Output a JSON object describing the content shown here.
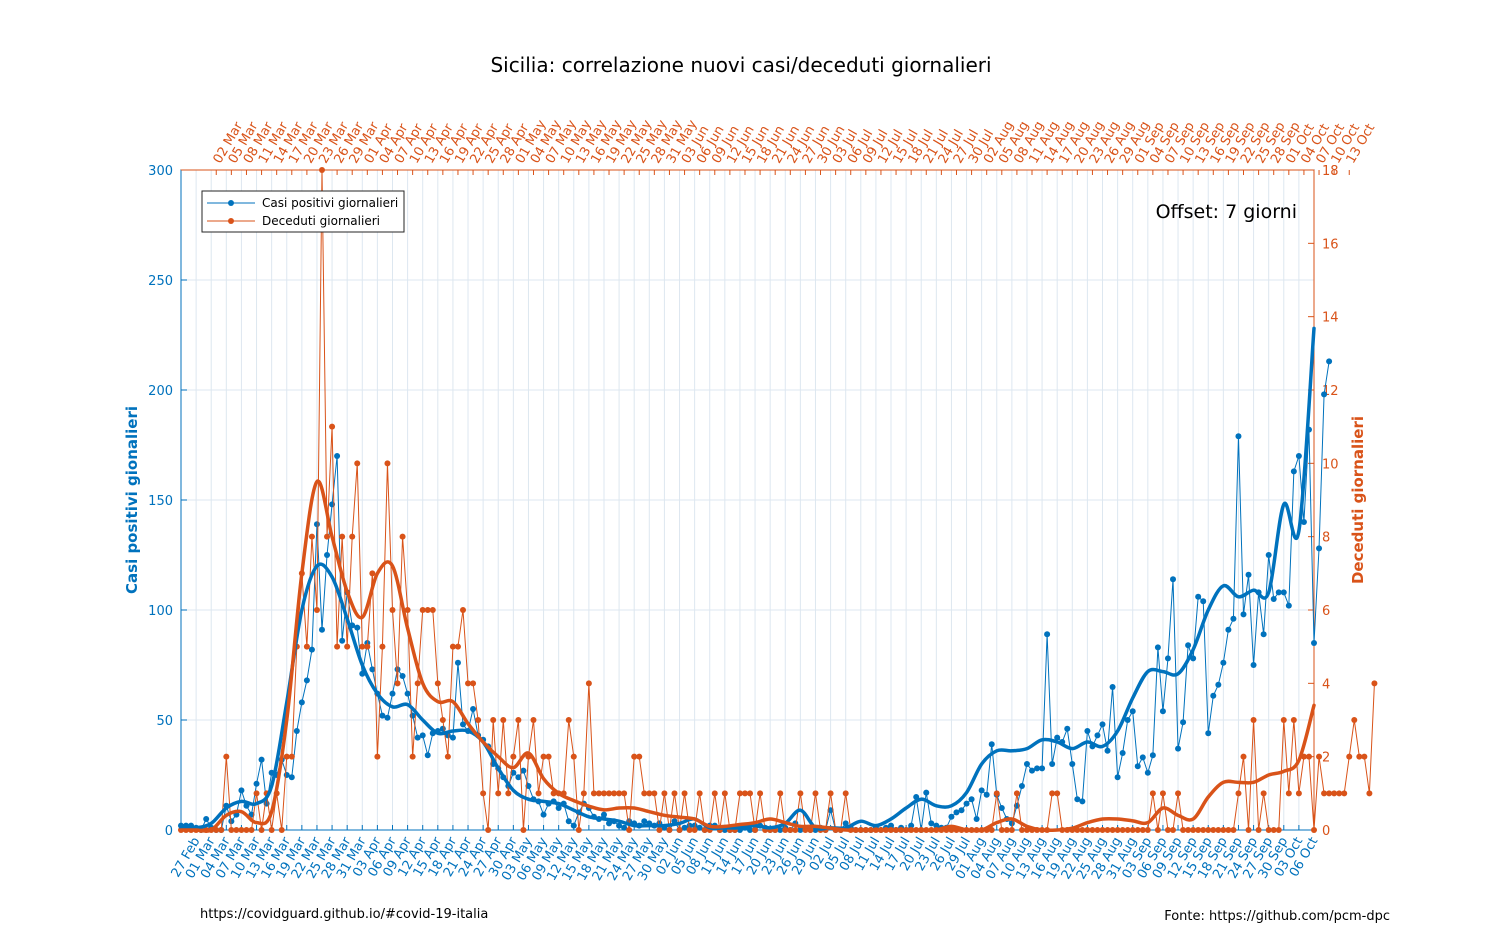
{
  "chart_data": {
    "type": "line",
    "title": "Sicilia: correlazione nuovi casi/deceduti giornalieri",
    "annotation": "Offset: 7 giorni",
    "source_left": "https://covidguard.github.io/#covid-19-italia",
    "source_right": "Fonte: https://github.com/pcm-dpc",
    "x_axis_bottom": {
      "start_date": "2020-02-24",
      "end_date": "2020-10-06",
      "tick_start": "2020-02-27",
      "tick_step_days": 3,
      "tick_labels": [
        "27 Feb",
        "01 Mar",
        "04 Mar",
        "07 Mar",
        "10 Mar",
        "13 Mar",
        "16 Mar",
        "19 Mar",
        "22 Mar",
        "25 Mar",
        "28 Mar",
        "31 Mar",
        "03 Apr",
        "06 Apr",
        "09 Apr",
        "12 Apr",
        "15 Apr",
        "18 Apr",
        "21 Apr",
        "24 Apr",
        "27 Apr",
        "30 Apr",
        "03 May",
        "06 May",
        "09 May",
        "12 May",
        "15 May",
        "18 May",
        "21 May",
        "24 May",
        "27 May",
        "30 May",
        "02 Jun",
        "05 Jun",
        "08 Jun",
        "11 Jun",
        "14 Jun",
        "17 Jun",
        "20 Jun",
        "23 Jun",
        "26 Jun",
        "29 Jun",
        "02 Jul",
        "05 Jul",
        "08 Jul",
        "11 Jul",
        "14 Jul",
        "17 Jul",
        "20 Jul",
        "23 Jul",
        "26 Jul",
        "29 Jul",
        "01 Aug",
        "04 Aug",
        "07 Aug",
        "10 Aug",
        "13 Aug",
        "16 Aug",
        "19 Aug",
        "22 Aug",
        "25 Aug",
        "28 Aug",
        "31 Aug",
        "03 Sep",
        "06 Sep",
        "09 Sep",
        "12 Sep",
        "15 Sep",
        "18 Sep",
        "21 Sep",
        "24 Sep",
        "27 Sep",
        "30 Sep",
        "03 Oct",
        "06 Oct"
      ]
    },
    "x_axis_top": {
      "start_date": "2020-03-02",
      "end_date": "2020-10-13",
      "tick_labels": [
        "02 Mar",
        "05 Mar",
        "08 Mar",
        "11 Mar",
        "14 Mar",
        "17 Mar",
        "20 Mar",
        "23 Mar",
        "26 Mar",
        "29 Mar",
        "01 Apr",
        "04 Apr",
        "07 Apr",
        "10 Apr",
        "13 Apr",
        "16 Apr",
        "19 Apr",
        "22 Apr",
        "25 Apr",
        "28 Apr",
        "01 May",
        "04 May",
        "07 May",
        "10 May",
        "13 May",
        "16 May",
        "19 May",
        "22 May",
        "25 May",
        "28 May",
        "31 May",
        "03 Jun",
        "06 Jun",
        "09 Jun",
        "12 Jun",
        "15 Jun",
        "18 Jun",
        "21 Jun",
        "24 Jun",
        "27 Jun",
        "30 Jun",
        "03 Jul",
        "06 Jul",
        "09 Jul",
        "12 Jul",
        "15 Jul",
        "18 Jul",
        "21 Jul",
        "24 Jul",
        "27 Jul",
        "30 Jul",
        "02 Aug",
        "05 Aug",
        "08 Aug",
        "11 Aug",
        "14 Aug",
        "17 Aug",
        "20 Aug",
        "23 Aug",
        "26 Aug",
        "29 Aug",
        "01 Sep",
        "04 Sep",
        "07 Sep",
        "10 Sep",
        "13 Sep",
        "16 Sep",
        "19 Sep",
        "22 Sep",
        "25 Sep",
        "28 Sep",
        "01 Oct",
        "04 Oct",
        "07 Oct",
        "10 Oct",
        "13 Oct"
      ]
    },
    "y_left": {
      "label": "Casi positivi gionalieri",
      "ylim": [
        0,
        300
      ],
      "ticks": [
        0,
        50,
        100,
        150,
        200,
        250,
        300
      ],
      "color": "#0072BD"
    },
    "y_right": {
      "label": "Deceduti giornalieri",
      "ylim": [
        0,
        18
      ],
      "ticks": [
        0,
        2,
        4,
        6,
        8,
        10,
        12,
        14,
        16,
        18
      ],
      "color": "#D95319"
    },
    "grid": true,
    "legend_position": "top-left",
    "series": [
      {
        "name": "Casi positivi giornalieri",
        "axis": "left",
        "color": "#0072BD",
        "x_start": "2020-02-24",
        "values": [
          2,
          2,
          2,
          1,
          0,
          5,
          1,
          0,
          0,
          11,
          4,
          7,
          18,
          11,
          7,
          21,
          32,
          12,
          26,
          25,
          32,
          25,
          24,
          45,
          58,
          68,
          82,
          139,
          91,
          125,
          148,
          170,
          86,
          108,
          93,
          92,
          71,
          85,
          73,
          62,
          52,
          51,
          62,
          73,
          70,
          62,
          52,
          42,
          43,
          34,
          44,
          45,
          46,
          43,
          42,
          76,
          48,
          45,
          55,
          43,
          41,
          38,
          30,
          28,
          24,
          20,
          26,
          24,
          27,
          20,
          14,
          13,
          7,
          12,
          13,
          10,
          12,
          4,
          2,
          8,
          12,
          10,
          6,
          5,
          7,
          3,
          4,
          2,
          1,
          4,
          3,
          2,
          4,
          3,
          2,
          3,
          1,
          0,
          4,
          0,
          1,
          2,
          2,
          1,
          0,
          2,
          2,
          0,
          0,
          0,
          0,
          0,
          1,
          0,
          0,
          2,
          1,
          0,
          0,
          0,
          1,
          0,
          3,
          0,
          1,
          0,
          0,
          1,
          0,
          9,
          0,
          0,
          3,
          1,
          0,
          0,
          0,
          0,
          1,
          0,
          1,
          2,
          0,
          1,
          0,
          2,
          15,
          0,
          17,
          3,
          2,
          1,
          1,
          6,
          8,
          9,
          12,
          14,
          5,
          18,
          16,
          39,
          16,
          10,
          5,
          3,
          11,
          20,
          30,
          27,
          28,
          28,
          89,
          30,
          42,
          40,
          46,
          30,
          14,
          13,
          45,
          38,
          43,
          48,
          36,
          65,
          24,
          35,
          50,
          54,
          29,
          33,
          26,
          34,
          83,
          54,
          78,
          114,
          37,
          49,
          84,
          78,
          106,
          104,
          44,
          61,
          66,
          76,
          91,
          96,
          179,
          98,
          116,
          75,
          108,
          89,
          125,
          105,
          108,
          108,
          102,
          163,
          170,
          140,
          182,
          85,
          128,
          198,
          213
        ]
      },
      {
        "name": "Deceduti giornalieri",
        "axis": "right",
        "color": "#D95319",
        "x_start": "2020-02-24",
        "values": [
          0,
          0,
          0,
          0,
          0,
          0,
          0,
          0,
          0,
          2,
          0,
          0,
          0,
          0,
          0,
          1,
          0,
          1,
          0,
          1,
          0,
          2,
          2,
          5,
          7,
          5,
          8,
          6,
          18,
          8,
          11,
          5,
          8,
          5,
          8,
          10,
          5,
          5,
          7,
          2,
          5,
          10,
          6,
          4,
          8,
          6,
          2,
          4,
          6,
          6,
          6,
          4,
          3,
          2,
          5,
          5,
          6,
          4,
          4,
          3,
          1,
          0,
          3,
          1,
          3,
          1,
          2,
          3,
          0,
          2,
          3,
          1,
          2,
          2,
          1,
          1,
          1,
          3,
          2,
          0,
          1,
          4,
          1,
          1,
          1,
          1,
          1,
          1,
          1,
          0,
          2,
          2,
          1,
          1,
          1,
          0,
          1,
          0,
          1,
          0,
          1,
          0,
          0,
          1,
          0,
          0,
          1,
          0,
          1,
          0,
          0,
          1,
          1,
          1,
          0,
          1,
          0,
          0,
          0,
          1,
          0,
          0,
          0,
          1,
          0,
          0,
          1,
          0,
          0,
          1,
          0,
          0,
          1,
          0,
          0,
          0,
          0,
          0,
          0,
          0,
          0,
          0,
          0,
          0,
          0,
          0,
          0,
          0,
          0,
          0,
          0,
          0,
          0,
          0,
          0,
          0,
          0,
          0,
          0,
          0,
          0,
          0,
          1,
          0,
          0,
          0,
          1,
          0,
          0,
          0,
          0,
          0,
          0,
          1,
          1,
          0,
          0,
          0,
          0,
          0,
          0,
          0,
          0,
          0,
          0,
          0,
          0,
          0,
          0,
          0,
          0,
          0,
          0,
          1,
          0,
          1,
          0,
          0,
          1,
          0,
          0,
          0,
          0,
          0,
          0,
          0,
          0,
          0,
          0,
          0,
          1,
          2,
          0,
          3,
          0,
          1,
          0,
          0,
          0,
          3,
          1,
          3,
          1,
          2,
          2,
          0,
          2,
          1,
          1,
          1,
          1,
          1,
          2,
          3,
          2,
          2,
          1,
          4
        ]
      }
    ],
    "trend_series": [
      {
        "name": "",
        "axis": "left",
        "color": "#0072BD",
        "x": [
          "2020-02-24",
          "2020-02-27",
          "2020-03-01",
          "2020-03-04",
          "2020-03-07",
          "2020-03-10",
          "2020-03-13",
          "2020-03-16",
          "2020-03-19",
          "2020-03-22",
          "2020-03-25",
          "2020-03-28",
          "2020-03-31",
          "2020-04-03",
          "2020-04-06",
          "2020-04-09",
          "2020-04-12",
          "2020-04-15",
          "2020-04-18",
          "2020-04-21",
          "2020-04-24",
          "2020-04-27",
          "2020-04-30",
          "2020-05-03",
          "2020-05-06",
          "2020-05-09",
          "2020-05-12",
          "2020-05-15",
          "2020-05-18",
          "2020-05-21",
          "2020-05-24",
          "2020-05-27",
          "2020-05-30",
          "2020-06-02",
          "2020-06-05",
          "2020-06-08",
          "2020-06-11",
          "2020-06-14",
          "2020-06-17",
          "2020-06-20",
          "2020-06-23",
          "2020-06-26",
          "2020-06-29",
          "2020-07-02",
          "2020-07-05",
          "2020-07-08",
          "2020-07-11",
          "2020-07-14",
          "2020-07-17",
          "2020-07-20",
          "2020-07-23",
          "2020-07-26",
          "2020-07-29",
          "2020-08-01",
          "2020-08-04",
          "2020-08-07",
          "2020-08-10",
          "2020-08-13",
          "2020-08-16",
          "2020-08-19",
          "2020-08-22",
          "2020-08-25",
          "2020-08-28",
          "2020-08-31",
          "2020-09-03",
          "2020-09-06",
          "2020-09-09",
          "2020-09-12",
          "2020-09-15",
          "2020-09-18",
          "2020-09-21",
          "2020-09-24",
          "2020-09-27",
          "2020-09-30",
          "2020-10-03",
          "2020-10-06"
        ],
        "values": [
          1,
          1,
          3,
          10,
          13,
          12,
          20,
          58,
          100,
          120,
          115,
          96,
          75,
          62,
          56,
          57,
          50,
          44,
          45,
          45,
          40,
          28,
          18,
          14,
          13,
          12,
          9,
          6,
          5,
          4,
          2,
          2,
          2,
          3,
          5,
          1,
          1,
          1,
          2,
          1,
          3,
          9,
          1,
          1,
          1,
          4,
          2,
          5,
          10,
          14,
          11,
          11,
          17,
          30,
          36,
          36,
          37,
          41,
          40,
          37,
          40,
          38,
          45,
          60,
          72,
          72,
          71,
          82,
          100,
          111,
          106,
          109,
          108,
          148,
          136,
          228
        ]
      },
      {
        "name": "",
        "axis": "right",
        "color": "#D95319",
        "x": [
          "2020-02-24",
          "2020-02-27",
          "2020-03-01",
          "2020-03-04",
          "2020-03-07",
          "2020-03-10",
          "2020-03-13",
          "2020-03-16",
          "2020-03-19",
          "2020-03-22",
          "2020-03-25",
          "2020-03-28",
          "2020-03-31",
          "2020-04-03",
          "2020-04-06",
          "2020-04-09",
          "2020-04-12",
          "2020-04-15",
          "2020-04-18",
          "2020-04-21",
          "2020-04-24",
          "2020-04-27",
          "2020-04-30",
          "2020-05-03",
          "2020-05-06",
          "2020-05-09",
          "2020-05-12",
          "2020-05-15",
          "2020-05-18",
          "2020-05-21",
          "2020-05-24",
          "2020-05-27",
          "2020-05-30",
          "2020-06-02",
          "2020-06-05",
          "2020-06-08",
          "2020-06-11",
          "2020-06-14",
          "2020-06-17",
          "2020-06-20",
          "2020-06-23",
          "2020-06-26",
          "2020-06-29",
          "2020-07-02",
          "2020-07-05",
          "2020-07-08",
          "2020-07-11",
          "2020-07-14",
          "2020-07-17",
          "2020-07-20",
          "2020-07-23",
          "2020-07-26",
          "2020-07-29",
          "2020-08-01",
          "2020-08-04",
          "2020-08-07",
          "2020-08-10",
          "2020-08-13",
          "2020-08-16",
          "2020-08-19",
          "2020-08-22",
          "2020-08-25",
          "2020-08-28",
          "2020-08-31",
          "2020-09-03",
          "2020-09-06",
          "2020-09-09",
          "2020-09-12",
          "2020-09-15",
          "2020-09-18",
          "2020-09-21",
          "2020-09-24",
          "2020-09-27",
          "2020-09-30",
          "2020-10-03",
          "2020-10-06"
        ],
        "values": [
          0,
          0,
          0,
          0.4,
          0.5,
          0.2,
          0.5,
          3,
          7,
          9.5,
          8,
          6.5,
          5.8,
          7,
          7.2,
          5.5,
          4,
          3.5,
          3.5,
          2.9,
          2.4,
          2,
          1.7,
          2.1,
          1.4,
          1,
          0.8,
          0.65,
          0.55,
          0.6,
          0.6,
          0.5,
          0.4,
          0.35,
          0.3,
          0.1,
          0.1,
          0.15,
          0.2,
          0.3,
          0.2,
          0.1,
          0.1,
          0.05,
          0,
          0,
          0,
          0,
          0,
          0,
          0,
          0.1,
          0,
          0,
          0.2,
          0.3,
          0.1,
          0,
          0,
          0.05,
          0.2,
          0.3,
          0.3,
          0.25,
          0.2,
          0.6,
          0.4,
          0.3,
          0.9,
          1.3,
          1.3,
          1.3,
          1.5,
          1.6,
          1.9,
          3.4
        ]
      }
    ]
  }
}
